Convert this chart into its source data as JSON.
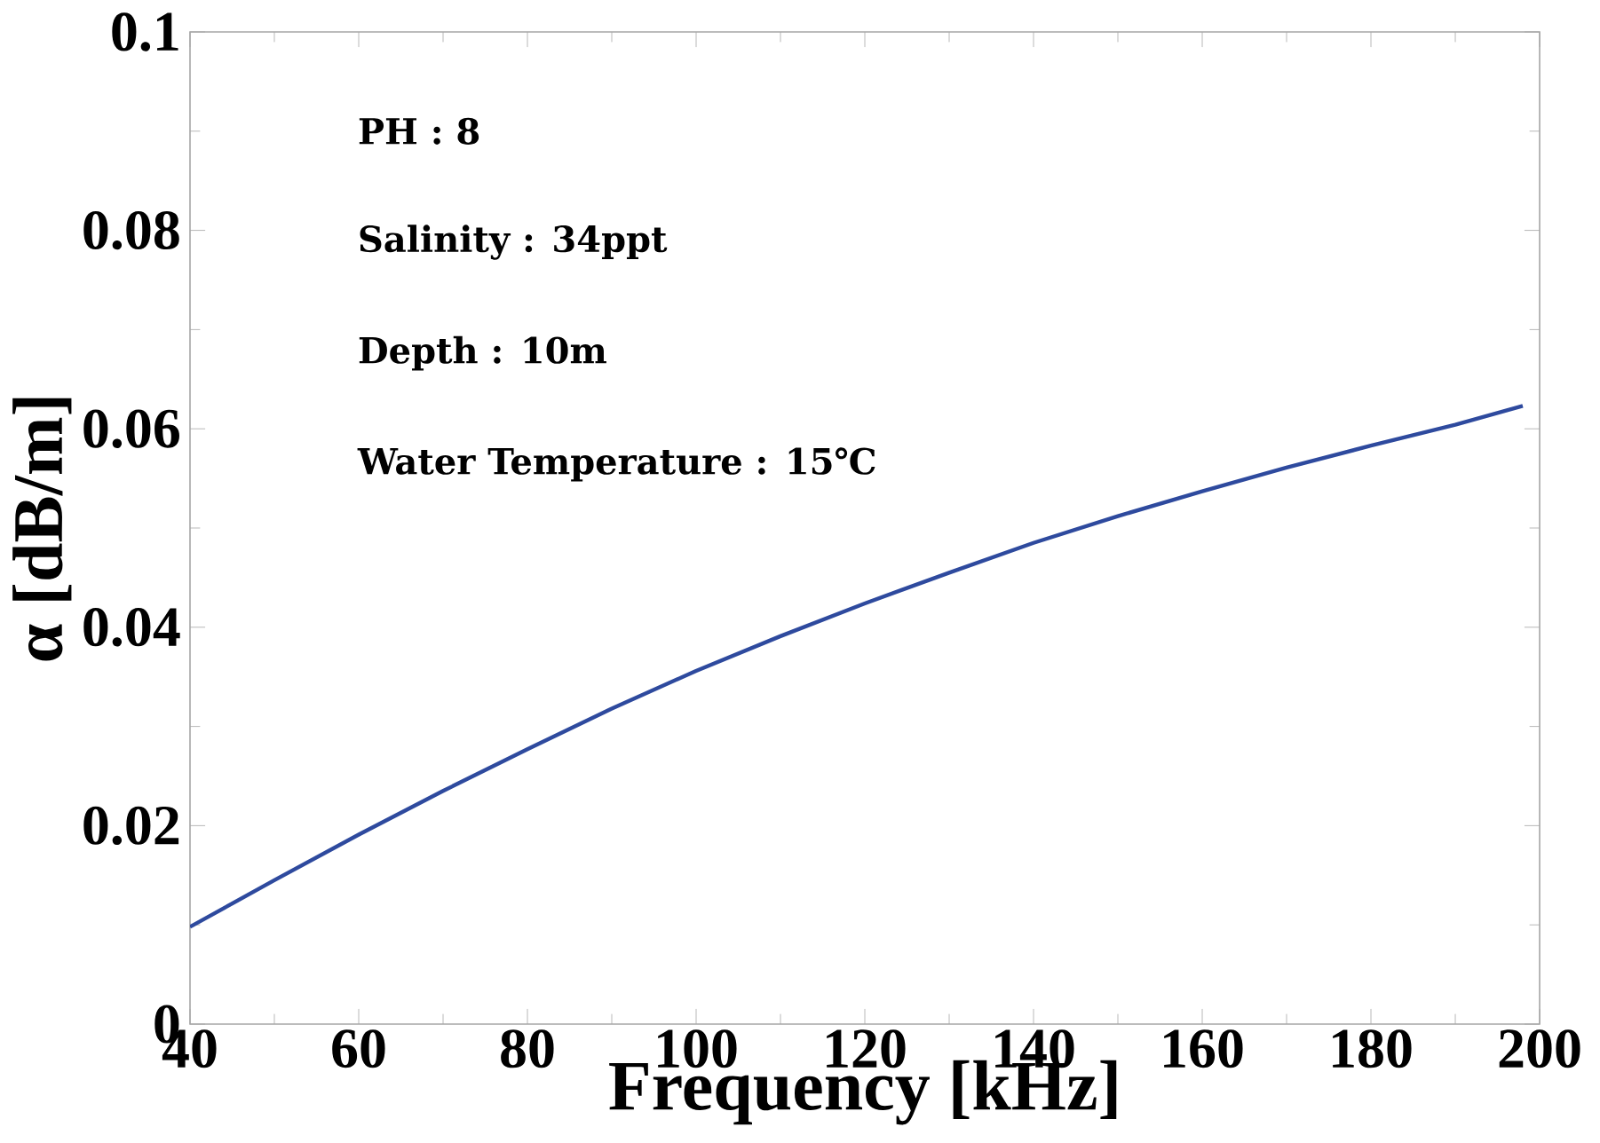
{
  "chart_data": {
    "type": "line",
    "xlabel": "Frequency [kHz]",
    "ylabel": "α [dB/m]",
    "annotations": [
      "PH : 8",
      "Salinity : 34ppt",
      "Depth : 10m",
      "Water   Temperature : 15℃"
    ],
    "x": [
      40,
      50,
      60,
      70,
      80,
      90,
      100,
      110,
      120,
      130,
      140,
      150,
      160,
      170,
      180,
      190,
      198
    ],
    "series": [
      {
        "color": "#2e4a9e",
        "values": [
          0.0098,
          0.0145,
          0.0191,
          0.0235,
          0.0277,
          0.0318,
          0.0356,
          0.0391,
          0.0424,
          0.0455,
          0.0485,
          0.0512,
          0.0537,
          0.0561,
          0.0583,
          0.0604,
          0.0623
        ]
      }
    ],
    "xlim": [
      40,
      200
    ],
    "ylim": [
      0,
      0.1
    ],
    "xticks": [
      40,
      60,
      80,
      100,
      120,
      140,
      160,
      180,
      200
    ],
    "yticks": [
      0,
      0.02,
      0.04,
      0.06,
      0.08,
      0.1
    ],
    "grid": false,
    "legend": false,
    "marker": "none",
    "line_style": "solid"
  }
}
